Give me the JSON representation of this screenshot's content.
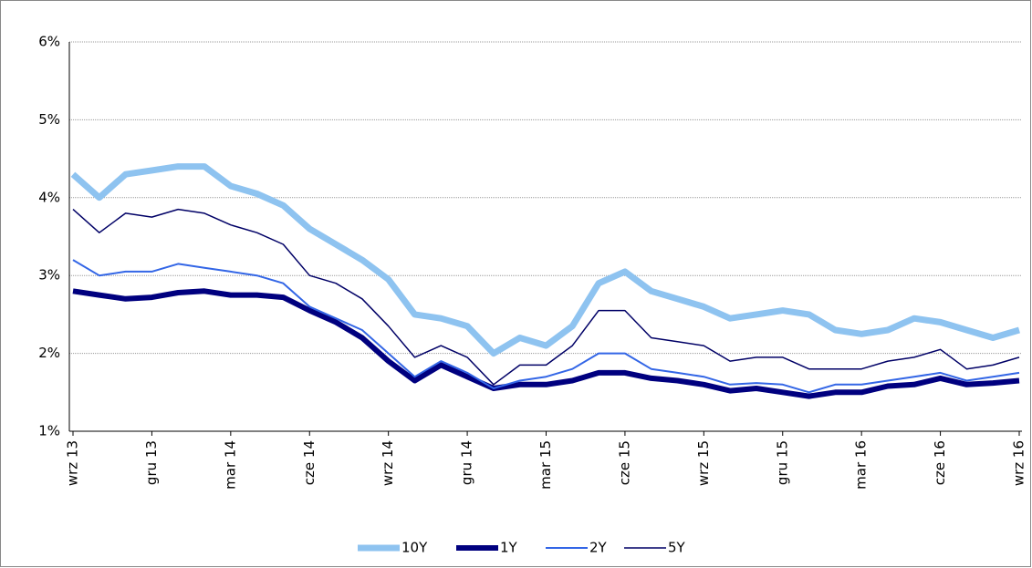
{
  "chart_data": {
    "type": "line",
    "categories": [
      "wrz 13",
      null,
      null,
      "gru 13",
      null,
      null,
      "mar 14",
      null,
      null,
      "cze 14",
      null,
      null,
      "wrz 14",
      null,
      null,
      "gru 14",
      null,
      null,
      "mar 15",
      null,
      null,
      "cze 15",
      null,
      null,
      "wrz 15",
      null,
      null,
      "gru 15",
      null,
      null,
      "mar 16",
      null,
      null,
      "cze 16",
      null,
      null,
      "wrz 16"
    ],
    "series": [
      {
        "name": "10Y",
        "color": "#8ec3f0",
        "values": [
          4.3,
          4.0,
          4.3,
          4.35,
          4.4,
          4.4,
          4.15,
          4.05,
          3.9,
          3.6,
          3.4,
          3.2,
          2.95,
          2.5,
          2.45,
          2.35,
          2.0,
          2.2,
          2.1,
          2.35,
          2.9,
          3.05,
          2.8,
          2.7,
          2.6,
          2.45,
          2.5,
          2.55,
          2.5,
          2.3,
          2.25,
          2.3,
          2.45,
          2.4,
          2.3,
          2.2,
          2.3
        ]
      },
      {
        "name": "1Y",
        "color": "#00007f",
        "values": [
          2.8,
          2.75,
          2.7,
          2.72,
          2.78,
          2.8,
          2.75,
          2.75,
          2.72,
          2.55,
          2.4,
          2.2,
          1.9,
          1.65,
          1.85,
          1.7,
          1.55,
          1.6,
          1.6,
          1.65,
          1.75,
          1.75,
          1.68,
          1.65,
          1.6,
          1.52,
          1.55,
          1.5,
          1.45,
          1.5,
          1.5,
          1.58,
          1.6,
          1.68,
          1.6,
          1.62,
          1.65
        ]
      },
      {
        "name": "2Y",
        "color": "#3366e6",
        "values": [
          3.2,
          3.0,
          3.05,
          3.05,
          3.15,
          3.1,
          3.05,
          3.0,
          2.9,
          2.6,
          2.45,
          2.3,
          2.0,
          1.7,
          1.9,
          1.75,
          1.55,
          1.65,
          1.7,
          1.8,
          2.0,
          2.0,
          1.8,
          1.75,
          1.7,
          1.6,
          1.62,
          1.6,
          1.5,
          1.6,
          1.6,
          1.65,
          1.7,
          1.75,
          1.65,
          1.7,
          1.75
        ]
      },
      {
        "name": "5Y",
        "color": "#000066",
        "values": [
          3.85,
          3.55,
          3.8,
          3.75,
          3.85,
          3.8,
          3.65,
          3.55,
          3.4,
          3.0,
          2.9,
          2.7,
          2.35,
          1.95,
          2.1,
          1.95,
          1.6,
          1.85,
          1.85,
          2.1,
          2.55,
          2.55,
          2.2,
          2.15,
          2.1,
          1.9,
          1.95,
          1.95,
          1.8,
          1.8,
          1.8,
          1.9,
          1.95,
          2.05,
          1.8,
          1.85,
          1.95
        ]
      }
    ],
    "ylim": [
      1,
      6
    ],
    "yticks": [
      {
        "value": 1,
        "label": "1%"
      },
      {
        "value": 2,
        "label": "2%"
      },
      {
        "value": 3,
        "label": "3%"
      },
      {
        "value": 4,
        "label": "4%"
      },
      {
        "value": 5,
        "label": "5%"
      },
      {
        "value": 6,
        "label": "6%"
      }
    ],
    "grid": true,
    "legend": "bottom"
  }
}
